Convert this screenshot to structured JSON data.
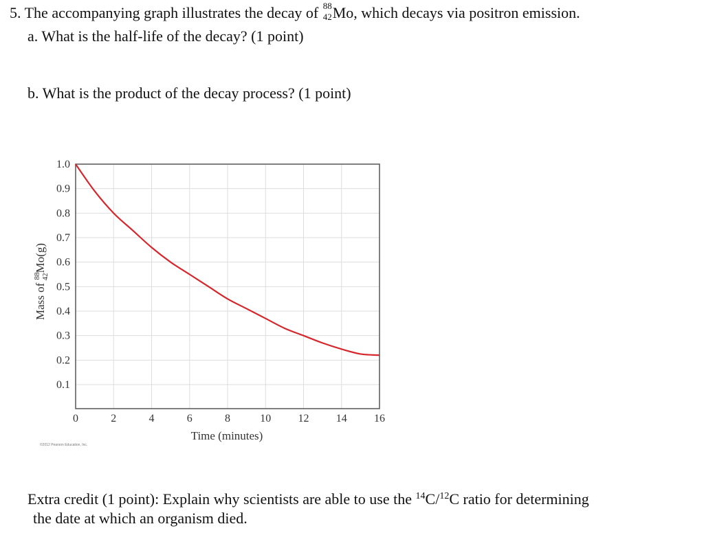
{
  "question5": {
    "number": "5.",
    "intro_before": "The accompanying graph illustrates the decay of",
    "nuclide_mass": "88",
    "nuclide_atomic": "42",
    "nuclide_symbol": "Mo",
    "intro_after": ", which decays via positron emission.",
    "part_a": "a.  What is the half-life of the decay? (1 point)",
    "part_b": "b.  What is the product of the decay process? (1 point)"
  },
  "extra_credit": {
    "before": "Extra credit (1 point): Explain why scientists are able to use the ",
    "iso1_mass": "14",
    "iso1_symbol": "C/",
    "iso2_mass": "12",
    "iso2_symbol": "C ratio for determining",
    "line2": "the date at which an organism died."
  },
  "copyright": "©2012 Pearson Education, Inc.",
  "chart_data": {
    "type": "line",
    "xlabel": "Time (minutes)",
    "ylabel_prefix": "Mass of ",
    "ylabel_mass": "88",
    "ylabel_atomic": "42",
    "ylabel_suffix": "Mo(g)",
    "xlim": [
      0,
      16
    ],
    "ylim": [
      0,
      1.0
    ],
    "x_ticks": [
      "0",
      "2",
      "4",
      "6",
      "8",
      "10",
      "12",
      "14",
      "16"
    ],
    "y_ticks": [
      "0.1",
      "0.2",
      "0.3",
      "0.4",
      "0.5",
      "0.6",
      "0.7",
      "0.8",
      "0.9",
      "1.0"
    ],
    "grid": true,
    "line_color": "#d7262b",
    "series": [
      {
        "x": [
          0,
          1,
          2,
          3,
          4,
          5,
          6,
          7,
          8,
          9,
          10,
          11,
          12,
          13,
          14,
          15,
          16
        ],
        "y": [
          1.0,
          0.89,
          0.8,
          0.73,
          0.66,
          0.6,
          0.55,
          0.5,
          0.45,
          0.41,
          0.37,
          0.33,
          0.3,
          0.27,
          0.245,
          0.225,
          0.22
        ]
      }
    ]
  }
}
